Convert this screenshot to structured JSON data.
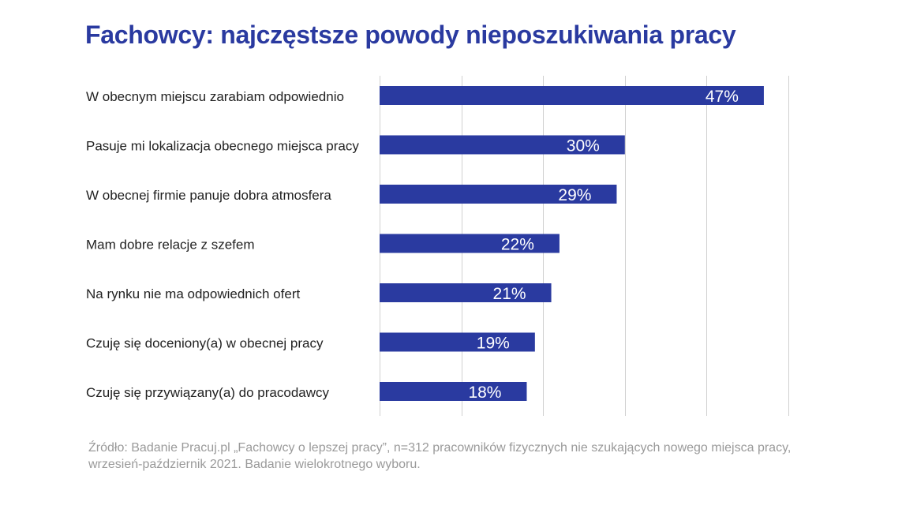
{
  "chart_data": {
    "type": "bar",
    "orientation": "horizontal",
    "title": "Fachowcy: najczęstsze powody nieposzukiwania pracy",
    "categories": [
      "W obecnym miejscu zarabiam odpowiednio",
      "Pasuje mi lokalizacja obecnego miejsca pracy",
      "W obecnej firmie panuje dobra atmosfera",
      "Mam dobre relacje z szefem",
      "Na rynku nie ma odpowiednich ofert",
      "Czuję się doceniony(a) w obecnej pracy",
      "Czuję się przywiązany(a) do pracodawcy"
    ],
    "values": [
      47,
      30,
      29,
      22,
      21,
      19,
      18
    ],
    "value_labels": [
      "47%",
      "30%",
      "29%",
      "22%",
      "21%",
      "19%",
      "18%"
    ],
    "xlim": [
      0,
      50
    ],
    "gridlines": [
      0,
      10,
      20,
      30,
      40,
      50
    ],
    "grid": true,
    "bar_color": "#2a3aa0",
    "value_label_color": "#ffffff"
  },
  "source": "Źródło: Badanie Pracuj.pl „Fachowcy o lepszej pracy”, n=312 pracowników fizycznych nie szukających nowego miejsca pracy, wrzesień-październik 2021. Badanie wielokrotnego wyboru."
}
